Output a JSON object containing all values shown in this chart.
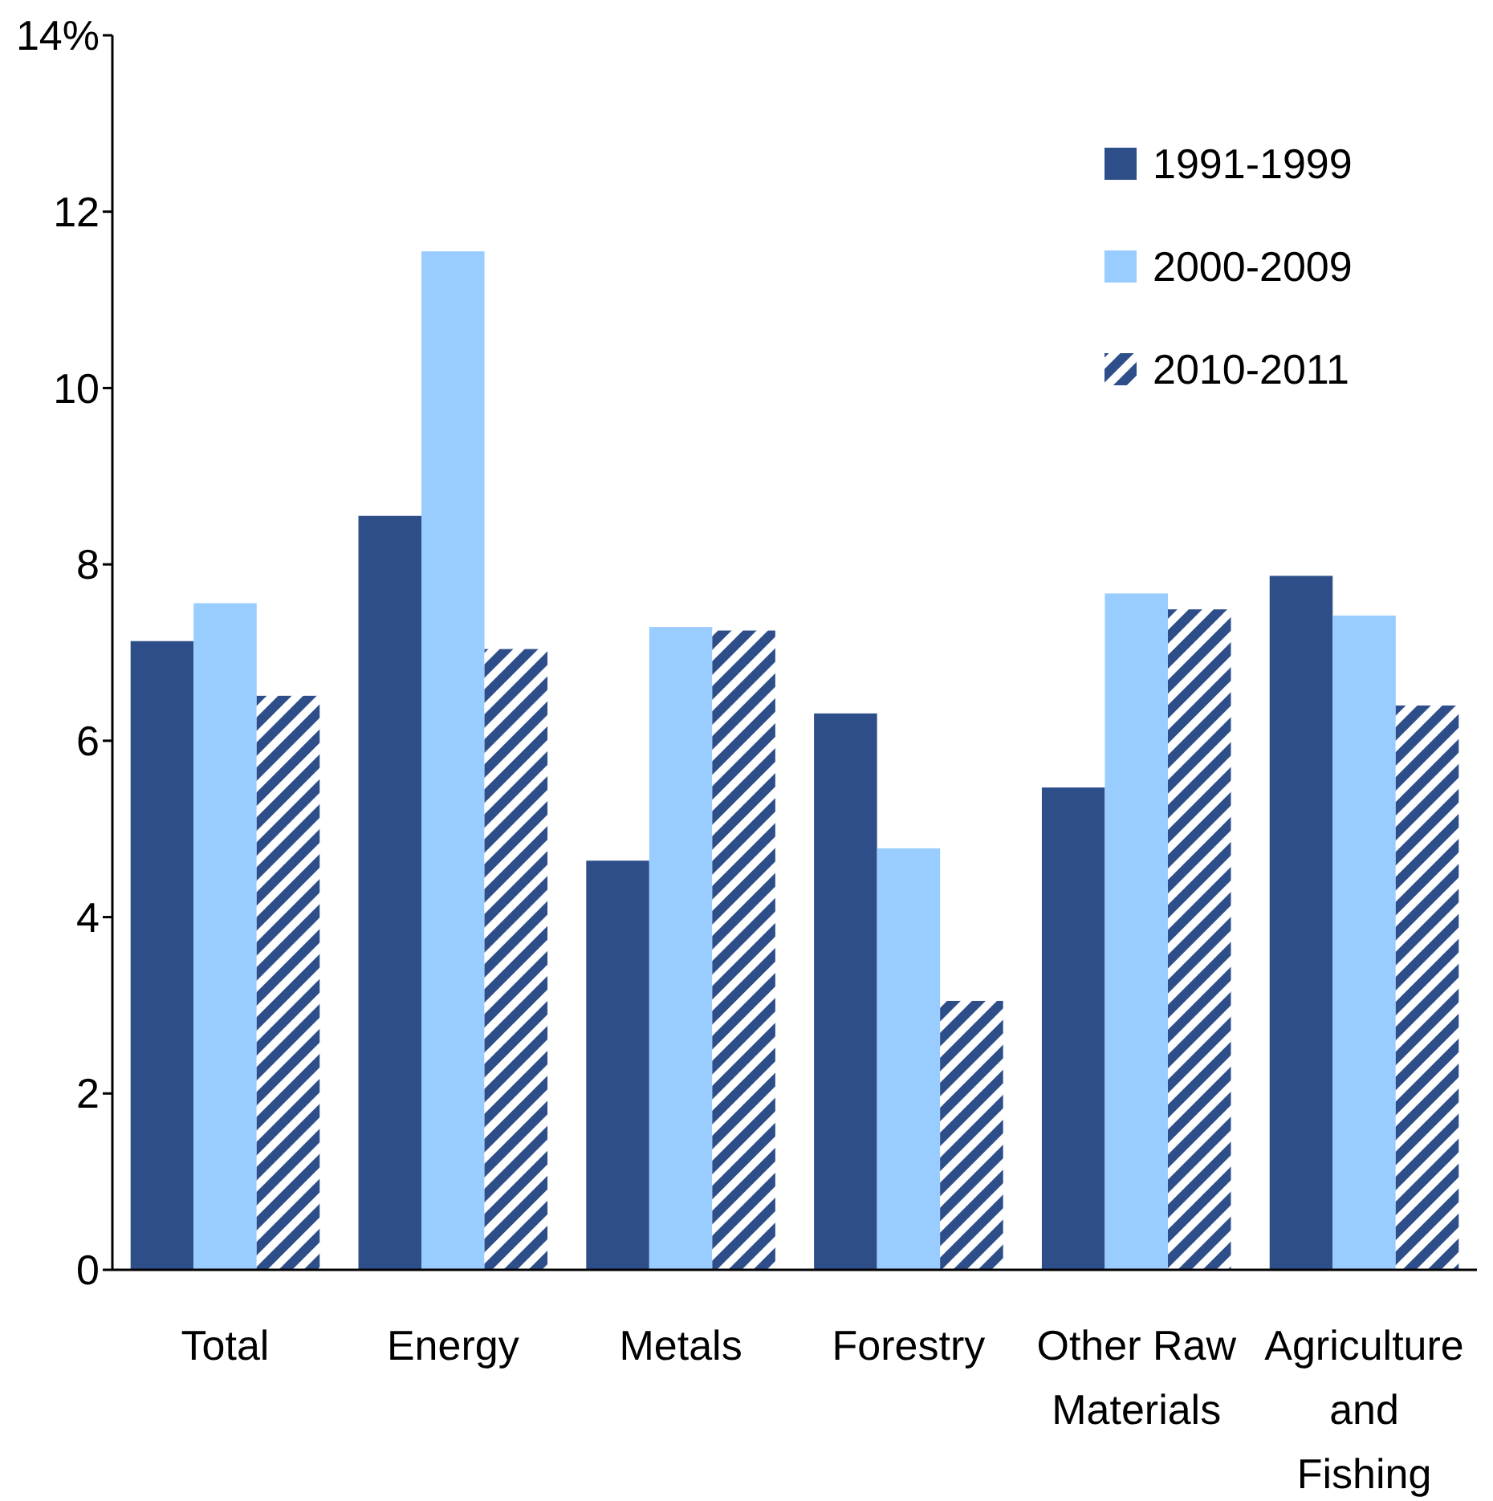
{
  "chart_data": {
    "type": "bar",
    "categories": [
      "Total",
      "Energy",
      "Metals",
      "Forestry",
      "Other Raw Materials",
      "Agriculture and Fishing"
    ],
    "series": [
      {
        "name": "1991-1999",
        "color": "#2e4e8a",
        "values": [
          7.13,
          8.55,
          4.64,
          6.31,
          5.47,
          7.87
        ]
      },
      {
        "name": "2000-2009",
        "color": "#99ccff",
        "values": [
          7.56,
          11.55,
          7.29,
          4.78,
          7.67,
          7.42
        ]
      },
      {
        "name": "2010-2011",
        "color": "#2e4e8a",
        "values": [
          6.51,
          7.04,
          7.25,
          3.05,
          7.49,
          6.4
        ]
      }
    ],
    "ylim": [
      0,
      14
    ],
    "yticks": [
      0,
      2,
      4,
      6,
      8,
      10,
      12,
      {
        "value": 14,
        "label": "14%"
      }
    ],
    "grid": false,
    "legend": "top right"
  }
}
